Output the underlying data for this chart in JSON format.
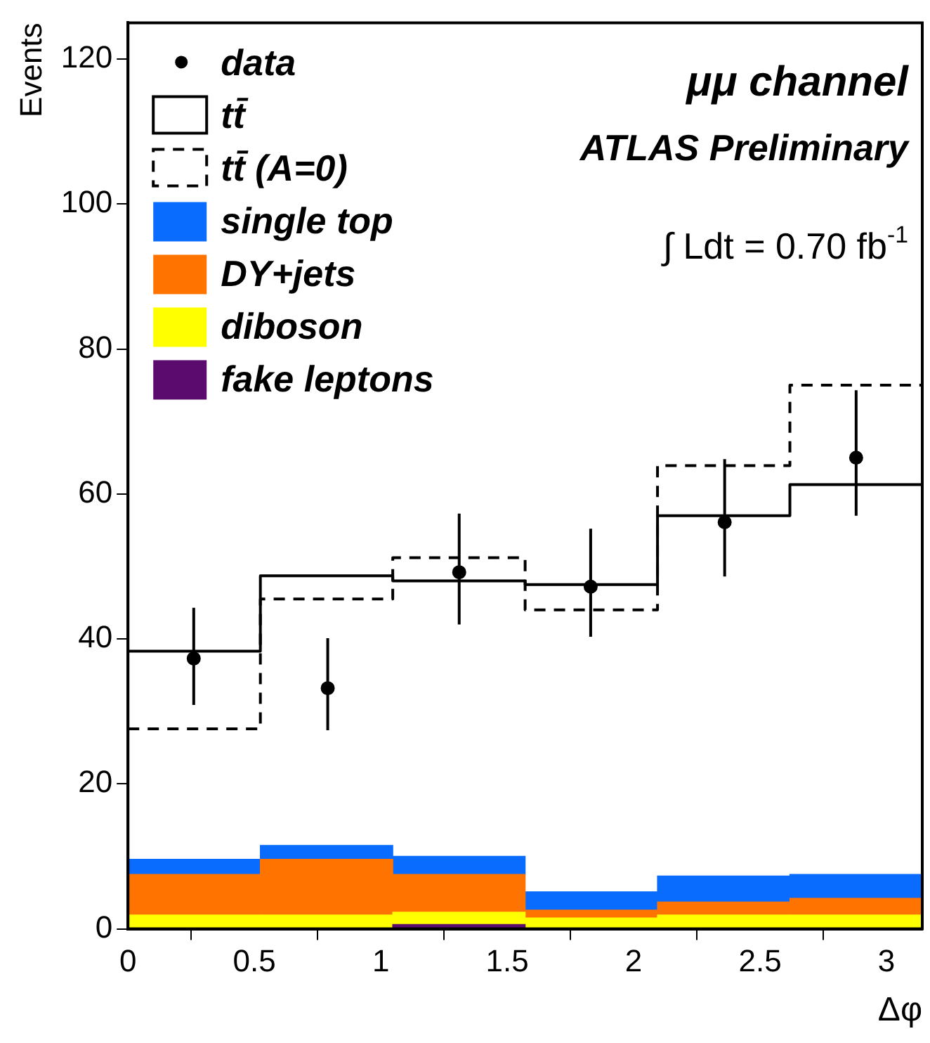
{
  "chart_data": {
    "type": "bar",
    "xlabel": "Δφ",
    "ylabel": "Events",
    "x": [
      0.2618,
      0.7854,
      1.309,
      1.8326,
      2.3562,
      2.8798
    ],
    "xlim": [
      0,
      3.1416
    ],
    "xticks": [
      0,
      0.5,
      1,
      1.5,
      2,
      2.5,
      3
    ],
    "ylim": [
      0,
      125
    ],
    "yticks": [
      0,
      20,
      40,
      60,
      80,
      100,
      120
    ],
    "stacked": true,
    "legend": "top left",
    "annotations": [
      "μμ channel",
      "ATLAS Preliminary",
      "∫ Ldt = 0.70 fb$^{-1}$"
    ],
    "series": [
      {
        "name": "data",
        "type": "scatter",
        "marker": "circle",
        "color": "#000000",
        "x": [
          0.26,
          0.79,
          1.31,
          1.83,
          2.36,
          2.88
        ],
        "values": [
          37.3,
          33.2,
          49.2,
          47.2,
          56.1,
          65
        ],
        "errors": [
          [
            30.9,
            44.3
          ],
          [
            27.4,
            40.1
          ],
          [
            42,
            57.3
          ],
          [
            40.3,
            55.2
          ],
          [
            48.6,
            64.8
          ],
          [
            57,
            74.3
          ]
        ]
      },
      {
        "name": "tt̄",
        "type": "step",
        "line_style": "solid",
        "color": "#000000",
        "x": [
          0,
          0.5236,
          1.0472,
          1.5708,
          2.0944,
          2.618,
          3.1416
        ],
        "values": [
          38.3,
          48.7,
          48,
          47.5,
          57,
          61.3,
          61.3
        ]
      },
      {
        "name": "tt̄ (A=0)",
        "type": "step",
        "line_style": "dashed",
        "color": "#000000",
        "x": [
          0,
          0.5236,
          1.0472,
          1.5708,
          2.0944,
          2.618,
          3.1416
        ],
        "values": [
          27.6,
          45.5,
          51.2,
          44,
          63.9,
          75,
          75
        ]
      },
      {
        "name": "fake leptons",
        "color": "#5b0a6e",
        "values": [
          0.1,
          0,
          0.6,
          0.1,
          0.1,
          0.1
        ]
      },
      {
        "name": "diboson",
        "color": "#ffff00",
        "values": [
          1.8,
          1.9,
          1.7,
          1.4,
          1.8,
          1.8
        ]
      },
      {
        "name": "DY+jets",
        "color": "#ff7300",
        "values": [
          5.6,
          7.7,
          5.2,
          1.1,
          1.8,
          2.3
        ]
      },
      {
        "name": "single top",
        "color": "#0a6cff",
        "values": [
          2.1,
          1.9,
          2.5,
          2.5,
          3.6,
          3.3
        ]
      }
    ]
  }
}
